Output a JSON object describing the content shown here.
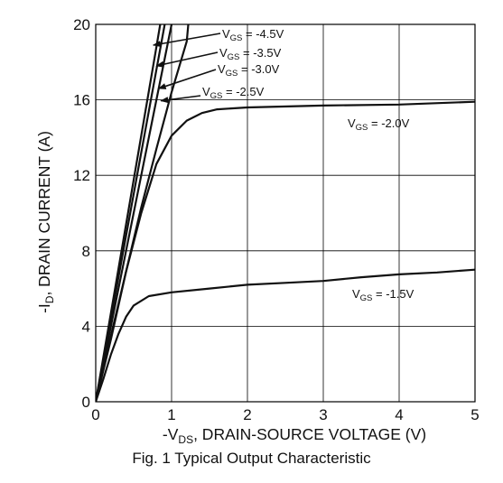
{
  "chart_data": {
    "type": "line",
    "caption": "Fig. 1 Typical Output Characteristic",
    "xlabel": {
      "prefix": "-V",
      "sub": "DS",
      "suffix": ", DRAIN-SOURCE VOLTAGE (V)"
    },
    "ylabel": {
      "prefix": "-I",
      "sub": "D",
      "suffix": ", DRAIN CURRENT (A)"
    },
    "xlim": [
      0,
      5
    ],
    "ylim": [
      0,
      20
    ],
    "xticks": [
      0,
      1,
      2,
      3,
      4,
      5
    ],
    "yticks": [
      0,
      4,
      8,
      12,
      16,
      20
    ],
    "grid": true,
    "series": [
      {
        "name_prefix": "V",
        "name_sub": "GS",
        "name_suffix": " = -4.5V",
        "points": [
          [
            0,
            0
          ],
          [
            0.2,
            4.7
          ],
          [
            0.4,
            9.4
          ],
          [
            0.6,
            14.1
          ],
          [
            0.8,
            18.8
          ],
          [
            0.85,
            20
          ]
        ]
      },
      {
        "name_prefix": "V",
        "name_sub": "GS",
        "name_suffix": " = -3.5V",
        "points": [
          [
            0,
            0
          ],
          [
            0.2,
            4.4
          ],
          [
            0.4,
            8.8
          ],
          [
            0.6,
            13.2
          ],
          [
            0.8,
            17.6
          ],
          [
            0.91,
            20
          ]
        ]
      },
      {
        "name_prefix": "V",
        "name_sub": "GS",
        "name_suffix": " = -3.0V",
        "points": [
          [
            0,
            0
          ],
          [
            0.2,
            4.0
          ],
          [
            0.4,
            8.0
          ],
          [
            0.6,
            12.0
          ],
          [
            0.8,
            16.0
          ],
          [
            1.0,
            20
          ]
        ]
      },
      {
        "name_prefix": "V",
        "name_sub": "GS",
        "name_suffix": " = -2.5V",
        "points": [
          [
            0,
            0
          ],
          [
            0.2,
            3.5
          ],
          [
            0.4,
            6.9
          ],
          [
            0.6,
            10.3
          ],
          [
            0.8,
            13.4
          ],
          [
            1.0,
            16.4
          ],
          [
            1.2,
            19.1
          ],
          [
            1.22,
            20
          ]
        ]
      },
      {
        "name_prefix": "V",
        "name_sub": "GS",
        "name_suffix": " = -2.0V",
        "points": [
          [
            0,
            0
          ],
          [
            0.2,
            3.3
          ],
          [
            0.4,
            6.9
          ],
          [
            0.6,
            10.0
          ],
          [
            0.8,
            12.6
          ],
          [
            1.0,
            14.1
          ],
          [
            1.2,
            14.9
          ],
          [
            1.4,
            15.3
          ],
          [
            1.6,
            15.5
          ],
          [
            2.0,
            15.6
          ],
          [
            3.0,
            15.7
          ],
          [
            4.0,
            15.75
          ],
          [
            5.0,
            15.9
          ]
        ]
      },
      {
        "name_prefix": "V",
        "name_sub": "GS",
        "name_suffix": " = -1.5V",
        "points": [
          [
            0,
            0
          ],
          [
            0.1,
            1.2
          ],
          [
            0.2,
            2.5
          ],
          [
            0.3,
            3.6
          ],
          [
            0.4,
            4.5
          ],
          [
            0.5,
            5.1
          ],
          [
            0.7,
            5.6
          ],
          [
            1.0,
            5.8
          ],
          [
            1.5,
            6.0
          ],
          [
            2.0,
            6.2
          ],
          [
            2.5,
            6.3
          ],
          [
            3.0,
            6.4
          ],
          [
            3.5,
            6.6
          ],
          [
            4.0,
            6.75
          ],
          [
            4.5,
            6.85
          ],
          [
            5.0,
            7.0
          ]
        ]
      }
    ]
  }
}
